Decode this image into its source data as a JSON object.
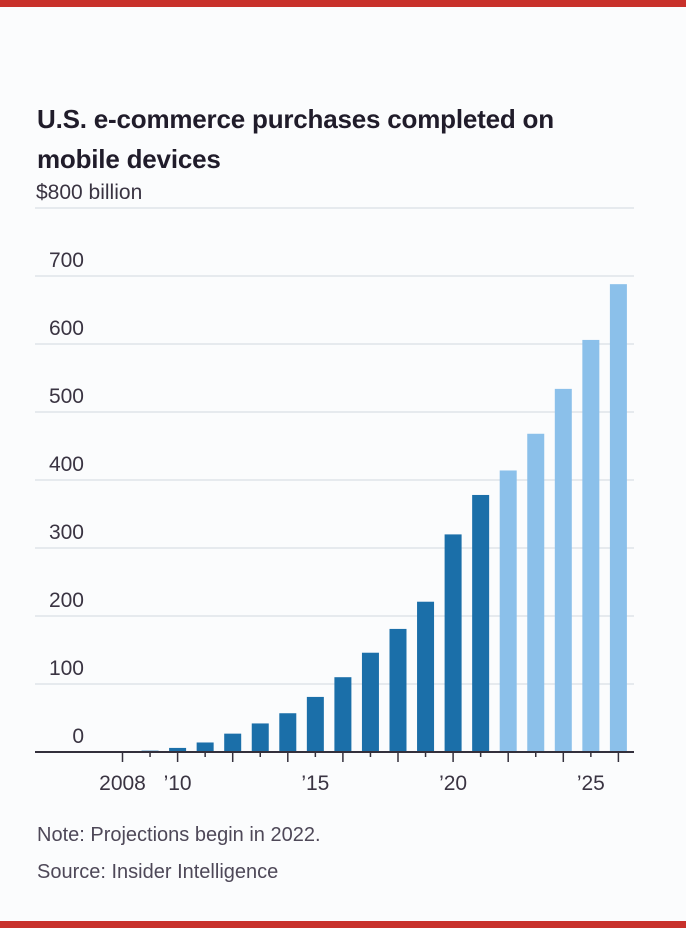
{
  "page": {
    "background": "#fbfcfd",
    "accent_color": "#c8312b"
  },
  "header": {
    "title_line1": "U.S. e-commerce purchases completed on",
    "title_line2": "mobile devices"
  },
  "chart_data": {
    "type": "bar",
    "title": "U.S. e-commerce purchases completed on mobile devices",
    "ylabel": "$800 billion",
    "ylim": [
      0,
      800
    ],
    "ytick_step": 100,
    "ytick_values": [
      0,
      100,
      200,
      300,
      400,
      500,
      600,
      700
    ],
    "grid": true,
    "years": [
      2008,
      2009,
      2010,
      2011,
      2012,
      2013,
      2014,
      2015,
      2016,
      2017,
      2018,
      2019,
      2020,
      2021,
      2022,
      2023,
      2024,
      2025,
      2026
    ],
    "values": [
      1,
      2,
      6,
      14,
      27,
      42,
      57,
      81,
      110,
      146,
      181,
      221,
      320,
      378,
      414,
      468,
      534,
      606,
      688
    ],
    "projection_start_year": 2022,
    "xtick_labels": [
      {
        "year": 2008,
        "label": "2008"
      },
      {
        "year": 2010,
        "label": "’10"
      },
      {
        "year": 2015,
        "label": "’15"
      },
      {
        "year": 2020,
        "label": "’20"
      },
      {
        "year": 2025,
        "label": "’25"
      }
    ],
    "colors": {
      "actual_bar": "#1b6fa9",
      "projection_bar": "#8bc0ea",
      "gridline": "#dadfe6",
      "axis": "#33303c",
      "tick_label": "#3a3442"
    }
  },
  "footer": {
    "note": "Note: Projections begin in 2022.",
    "source": "Source: Insider Intelligence"
  }
}
